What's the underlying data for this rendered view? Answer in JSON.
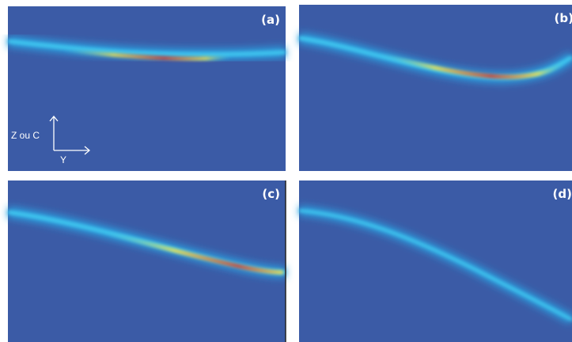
{
  "panels": [
    {
      "label": "(a)"
    },
    {
      "label": "(b)"
    },
    {
      "label": "(c)"
    },
    {
      "label": "(d)"
    }
  ],
  "axes": {
    "vertical": "Z ou C",
    "horizontal": "Y"
  }
}
